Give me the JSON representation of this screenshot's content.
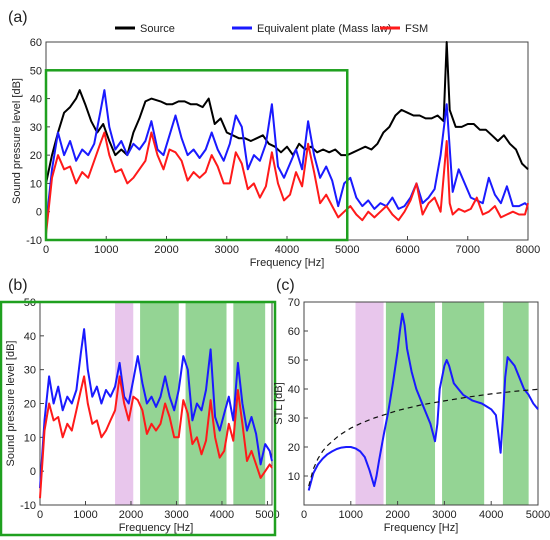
{
  "chart_data": [
    {
      "panel": "(a)",
      "type": "line",
      "xlabel": "Frequency [Hz]",
      "ylabel": "Sound pressure level  [dB]",
      "xlim": [
        0,
        8000
      ],
      "ylim": [
        -10,
        60
      ],
      "xticks": [
        0,
        1000,
        2000,
        3000,
        4000,
        5000,
        6000,
        7000,
        8000
      ],
      "yticks": [
        -10,
        0,
        10,
        20,
        30,
        40,
        50,
        60
      ],
      "legend_position": "top",
      "highlight_box": {
        "x": [
          0,
          5000
        ],
        "y": [
          -10,
          50
        ],
        "color": "#1fa01f"
      },
      "series": [
        {
          "name": "Source",
          "color": "#000000",
          "x": [
            0,
            100,
            200,
            300,
            400,
            500,
            560,
            650,
            750,
            850,
            950,
            1050,
            1150,
            1250,
            1350,
            1450,
            1550,
            1650,
            1750,
            1900,
            2000,
            2100,
            2200,
            2300,
            2400,
            2500,
            2600,
            2700,
            2800,
            2900,
            3000,
            3100,
            3200,
            3300,
            3400,
            3500,
            3600,
            3700,
            3800,
            3900,
            4000,
            4100,
            4200,
            4300,
            4400,
            4500,
            4600,
            4700,
            4800,
            4900,
            5000,
            5100,
            5200,
            5300,
            5400,
            5500,
            5600,
            5700,
            5800,
            5900,
            6000,
            6100,
            6200,
            6300,
            6400,
            6500,
            6600,
            6650,
            6700,
            6750,
            6800,
            6900,
            7000,
            7100,
            7200,
            7300,
            7400,
            7500,
            7600,
            7700,
            7800,
            7900,
            8000
          ],
          "y": [
            10,
            20,
            28,
            35,
            37,
            40,
            43,
            38,
            32,
            28,
            31,
            25,
            20,
            22,
            20,
            28,
            33,
            39,
            40,
            39,
            38,
            38,
            39,
            39,
            38,
            38,
            37,
            40,
            31,
            33,
            28,
            27,
            26,
            26,
            25,
            26,
            27,
            24,
            23,
            21,
            23,
            20,
            24,
            22,
            23,
            21,
            22,
            21,
            22,
            20,
            20,
            21,
            22,
            23,
            22,
            24,
            28,
            30,
            34,
            36,
            35,
            34,
            34,
            33,
            33,
            34,
            32,
            60,
            36,
            33,
            30,
            30,
            31,
            31,
            29,
            29,
            27,
            25,
            27,
            24,
            22,
            17,
            15
          ]
        },
        {
          "name": "Equivalent plate (Mass law)",
          "color": "#1a1aff",
          "x": [
            0,
            100,
            200,
            300,
            400,
            500,
            600,
            700,
            800,
            900,
            970,
            1050,
            1150,
            1250,
            1350,
            1450,
            1550,
            1650,
            1750,
            1850,
            1950,
            2050,
            2150,
            2250,
            2350,
            2450,
            2550,
            2650,
            2750,
            2850,
            2950,
            3050,
            3150,
            3250,
            3350,
            3450,
            3550,
            3650,
            3750,
            3850,
            3950,
            4050,
            4150,
            4250,
            4350,
            4450,
            4550,
            4650,
            4750,
            4850,
            4950,
            5050,
            5150,
            5250,
            5350,
            5450,
            5550,
            5650,
            5750,
            5850,
            5950,
            6050,
            6150,
            6250,
            6350,
            6450,
            6550,
            6650,
            6750,
            6850,
            6950,
            7050,
            7150,
            7250,
            7350,
            7450,
            7550,
            7650,
            7750,
            7850,
            7950,
            8000
          ],
          "y": [
            -5,
            15,
            28,
            20,
            25,
            18,
            22,
            20,
            24,
            35,
            43,
            30,
            22,
            25,
            20,
            24,
            22,
            25,
            32,
            22,
            20,
            27,
            34,
            26,
            20,
            22,
            19,
            22,
            28,
            22,
            18,
            24,
            34,
            30,
            15,
            20,
            18,
            24,
            38,
            16,
            12,
            17,
            22,
            15,
            32,
            20,
            12,
            16,
            11,
            2,
            10,
            12,
            5,
            2,
            4,
            1,
            3,
            2,
            5,
            1,
            2,
            5,
            10,
            3,
            5,
            8,
            20,
            38,
            7,
            15,
            10,
            5,
            4,
            3,
            12,
            6,
            3,
            9,
            2,
            2,
            3,
            2
          ]
        },
        {
          "name": "FSM",
          "color": "#ff1a1a",
          "x": [
            0,
            100,
            200,
            300,
            400,
            500,
            600,
            700,
            800,
            900,
            970,
            1050,
            1150,
            1250,
            1350,
            1450,
            1550,
            1650,
            1750,
            1850,
            1950,
            2050,
            2150,
            2250,
            2350,
            2450,
            2550,
            2650,
            2750,
            2850,
            2950,
            3050,
            3150,
            3250,
            3350,
            3450,
            3550,
            3650,
            3750,
            3850,
            3950,
            4050,
            4150,
            4250,
            4350,
            4450,
            4550,
            4650,
            4750,
            4850,
            4950,
            5050,
            5150,
            5250,
            5350,
            5450,
            5550,
            5650,
            5750,
            5850,
            5950,
            6050,
            6150,
            6250,
            6350,
            6450,
            6550,
            6650,
            6700,
            6750,
            6850,
            6950,
            7050,
            7150,
            7250,
            7350,
            7450,
            7550,
            7650,
            7750,
            7850,
            7950,
            8000
          ],
          "y": [
            -8,
            12,
            20,
            15,
            16,
            10,
            14,
            12,
            18,
            24,
            28,
            20,
            14,
            15,
            10,
            12,
            15,
            18,
            28,
            20,
            15,
            22,
            21,
            18,
            11,
            14,
            12,
            14,
            20,
            16,
            10,
            10,
            21,
            17,
            8,
            10,
            5,
            9,
            21,
            10,
            4,
            6,
            14,
            9,
            24,
            14,
            3,
            6,
            2,
            -2,
            0,
            2,
            -1,
            -3,
            0,
            -2,
            0,
            2,
            -1,
            -3,
            0,
            4,
            10,
            -1,
            3,
            5,
            0,
            25,
            3,
            -1,
            1,
            0,
            1,
            5,
            -1,
            0,
            2,
            -2,
            -1,
            0,
            -1,
            -1,
            3
          ]
        }
      ]
    },
    {
      "panel": "(b)",
      "type": "line",
      "xlabel": "Frequency [Hz]",
      "ylabel": "Sound pressure level  [dB]",
      "xlim": [
        0,
        5100
      ],
      "ylim": [
        -10,
        50
      ],
      "xticks": [
        0,
        1000,
        2000,
        3000,
        4000,
        5000
      ],
      "yticks": [
        -10,
        0,
        10,
        20,
        30,
        40,
        50
      ],
      "bands": [
        {
          "x": [
            1650,
            2050
          ],
          "color": "#e8c6ec"
        },
        {
          "x": [
            2200,
            3050
          ],
          "color": "#94d494"
        },
        {
          "x": [
            3200,
            4100
          ],
          "color": "#94d494"
        },
        {
          "x": [
            4250,
            4950
          ],
          "color": "#94d494"
        }
      ],
      "series": [
        {
          "color": "#1a1aff",
          "x": [
            0,
            100,
            200,
            300,
            400,
            500,
            600,
            700,
            800,
            900,
            970,
            1050,
            1150,
            1250,
            1350,
            1450,
            1550,
            1650,
            1750,
            1850,
            1950,
            2050,
            2150,
            2250,
            2350,
            2450,
            2550,
            2650,
            2750,
            2850,
            2950,
            3050,
            3150,
            3250,
            3350,
            3450,
            3550,
            3650,
            3750,
            3850,
            3950,
            4050,
            4150,
            4250,
            4350,
            4450,
            4550,
            4650,
            4750,
            4850,
            4950,
            5050,
            5100
          ],
          "y": [
            -5,
            15,
            28,
            20,
            25,
            18,
            22,
            20,
            24,
            35,
            42,
            30,
            22,
            25,
            20,
            24,
            22,
            25,
            32,
            22,
            20,
            27,
            34,
            26,
            20,
            22,
            19,
            22,
            28,
            22,
            18,
            24,
            34,
            30,
            15,
            20,
            18,
            24,
            36,
            16,
            12,
            17,
            22,
            15,
            32,
            20,
            12,
            16,
            11,
            2,
            8,
            6,
            3
          ]
        },
        {
          "color": "#ff1a1a",
          "x": [
            0,
            100,
            200,
            300,
            400,
            500,
            600,
            700,
            800,
            900,
            970,
            1050,
            1150,
            1250,
            1350,
            1450,
            1550,
            1650,
            1750,
            1850,
            1950,
            2050,
            2150,
            2250,
            2350,
            2450,
            2550,
            2650,
            2750,
            2850,
            2950,
            3050,
            3150,
            3250,
            3350,
            3450,
            3550,
            3650,
            3750,
            3850,
            3950,
            4050,
            4150,
            4250,
            4350,
            4450,
            4550,
            4650,
            4750,
            4850,
            4950,
            5050,
            5100
          ],
          "y": [
            -8,
            12,
            20,
            15,
            16,
            10,
            14,
            12,
            18,
            24,
            28,
            20,
            14,
            15,
            10,
            12,
            15,
            18,
            28,
            20,
            15,
            22,
            21,
            18,
            11,
            14,
            12,
            14,
            20,
            16,
            10,
            10,
            21,
            17,
            8,
            10,
            5,
            9,
            21,
            10,
            4,
            6,
            14,
            9,
            24,
            14,
            3,
            6,
            2,
            -2,
            0,
            2,
            1
          ]
        }
      ]
    },
    {
      "panel": "(c)",
      "type": "line",
      "xlabel": "Frequency [Hz]",
      "ylabel": "STL  [dB]",
      "xlim": [
        0,
        5000
      ],
      "ylim": [
        0,
        70
      ],
      "xticks": [
        0,
        1000,
        2000,
        3000,
        4000,
        5000
      ],
      "yticks": [
        10,
        20,
        30,
        40,
        50,
        60,
        70
      ],
      "bands": [
        {
          "x": [
            1100,
            1700
          ],
          "color": "#e8c6ec"
        },
        {
          "x": [
            1750,
            2800
          ],
          "color": "#94d494"
        },
        {
          "x": [
            2950,
            3850
          ],
          "color": "#94d494"
        },
        {
          "x": [
            4250,
            4800
          ],
          "color": "#94d494"
        }
      ],
      "series": [
        {
          "style": "solid",
          "color": "#1a1aff",
          "x": [
            100,
            200,
            300,
            400,
            500,
            600,
            700,
            800,
            900,
            1000,
            1100,
            1200,
            1300,
            1400,
            1500,
            1550,
            1600,
            1700,
            1800,
            1900,
            2000,
            2050,
            2100,
            2150,
            2200,
            2300,
            2400,
            2500,
            2600,
            2700,
            2800,
            2850,
            2900,
            3000,
            3050,
            3100,
            3200,
            3300,
            3400,
            3500,
            3600,
            3700,
            3800,
            3900,
            4000,
            4100,
            4150,
            4200,
            4250,
            4300,
            4350,
            4400,
            4500,
            4600,
            4700,
            4800,
            4900,
            5000
          ],
          "y": [
            5,
            11,
            14,
            16,
            17.5,
            18.5,
            19.3,
            19.8,
            20,
            20,
            19.5,
            18.5,
            16.5,
            12,
            6.5,
            10,
            15,
            24,
            32,
            42,
            53,
            60,
            66,
            62,
            54,
            46,
            40,
            36,
            32,
            28,
            22,
            28,
            40,
            48,
            50,
            48,
            42,
            40,
            38,
            37,
            36,
            35.5,
            35,
            34,
            33,
            31,
            25,
            18,
            30,
            44,
            51,
            50,
            48,
            44,
            40,
            38,
            35,
            33
          ]
        },
        {
          "style": "dashed",
          "color": "#111111",
          "x": [
            100,
            200,
            300,
            400,
            500,
            750,
            1000,
            1250,
            1500,
            2000,
            2500,
            3000,
            3500,
            4000,
            4500,
            5000
          ],
          "y": [
            6.5,
            12.5,
            16,
            18.6,
            20.5,
            24,
            26.5,
            28.4,
            30,
            32.6,
            34.5,
            35.9,
            37.2,
            38.3,
            39.2,
            39.9
          ]
        }
      ]
    }
  ]
}
